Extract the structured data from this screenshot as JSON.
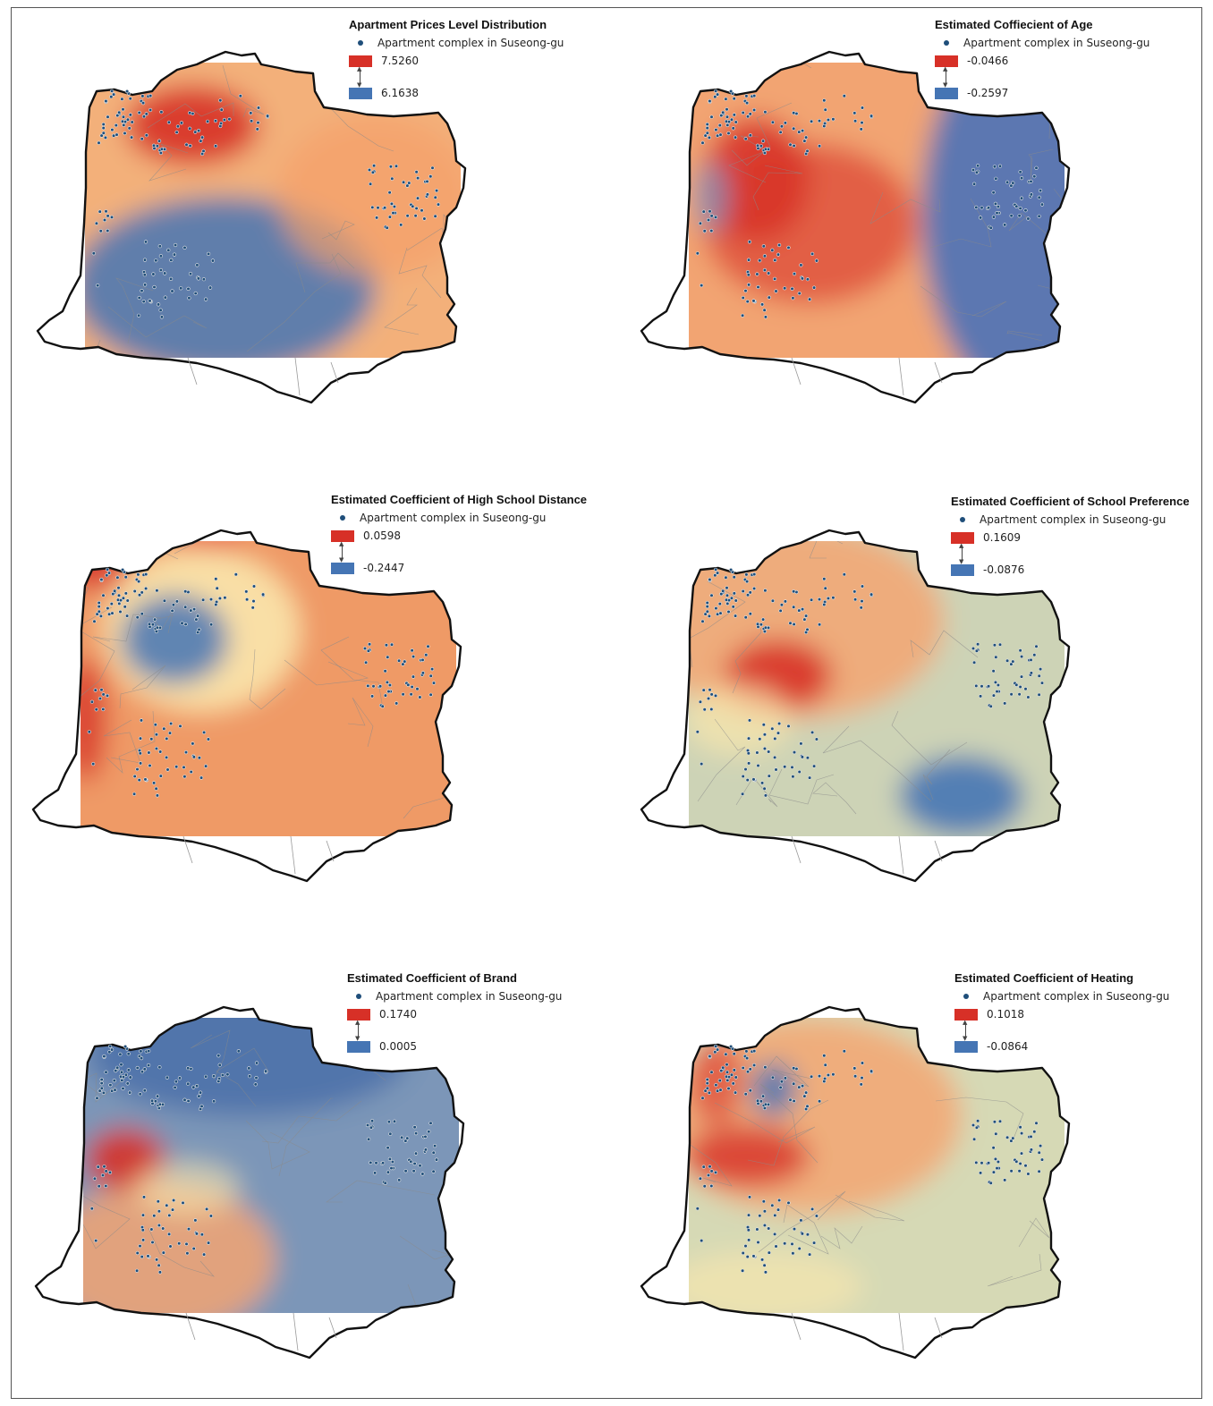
{
  "legend_item_label": "Apartment complex in Suseong-gu",
  "colors": {
    "high": "#d73027",
    "low": "#4575b4",
    "point": "#1f4e7a",
    "boundary": "#111111"
  },
  "panels": [
    {
      "title": "Apartment  Prices Level Distribution",
      "max": "7.5260",
      "min": "6.1638"
    },
    {
      "title": "Estimated Coffiecient of Age",
      "max": "-0.0466",
      "min": "-0.2597"
    },
    {
      "title": "Estimated Coefficient of High School Distance",
      "max": "0.0598",
      "min": "-0.2447"
    },
    {
      "title": "Estimated Coefficient of School Preference",
      "max": "0.1609",
      "min": "-0.0876"
    },
    {
      "title": "Estimated Coefficient of Brand",
      "max": "0.1740",
      "min": "0.0005"
    },
    {
      "title": "Estimated Coefficient of Heating",
      "max": "0.1018",
      "min": "-0.0864"
    }
  ]
}
